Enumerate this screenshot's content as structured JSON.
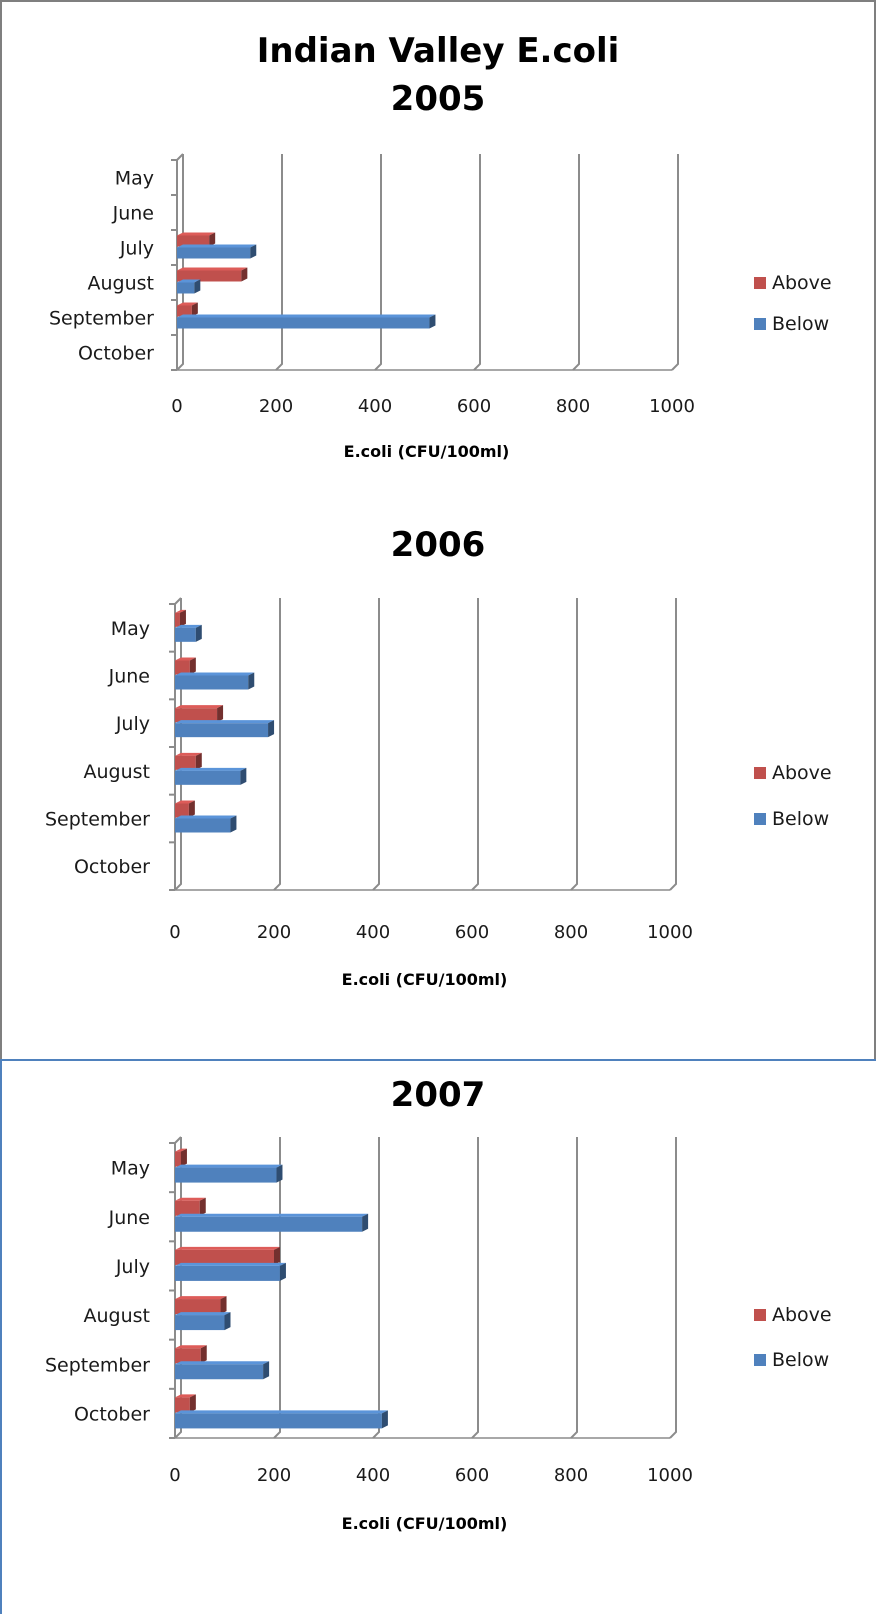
{
  "colors": {
    "above": "#c0504d",
    "below": "#4f81bd",
    "grid": "#8c8c8c",
    "border": "#7f7f7f",
    "border_accent": "#4f81bd"
  },
  "chart_data": [
    {
      "type": "bar",
      "orientation": "horizontal",
      "title": "Indian Valley E.coli",
      "subtitle": "2005",
      "categories": [
        "May",
        "June",
        "July",
        "August",
        "September",
        "October"
      ],
      "series": [
        {
          "name": "Above",
          "values": [
            0,
            0,
            65,
            130,
            30,
            0
          ]
        },
        {
          "name": "Below",
          "values": [
            0,
            0,
            148,
            35,
            510,
            0
          ]
        }
      ],
      "xlabel": "E.coli (CFU/100ml)",
      "xlim": [
        0,
        1000
      ],
      "xticks": [
        "0",
        "200",
        "400",
        "600",
        "800",
        "1000"
      ],
      "grid": true,
      "legend": "right"
    },
    {
      "type": "bar",
      "orientation": "horizontal",
      "title": "2006",
      "categories": [
        "May",
        "June",
        "July",
        "August",
        "September",
        "October"
      ],
      "series": [
        {
          "name": "Above",
          "values": [
            10,
            30,
            85,
            42,
            28,
            0
          ]
        },
        {
          "name": "Below",
          "values": [
            42,
            148,
            188,
            132,
            112,
            0
          ]
        }
      ],
      "xlabel": "E.coli (CFU/100ml)",
      "xlim": [
        0,
        1000
      ],
      "xticks": [
        "0",
        "200",
        "400",
        "600",
        "800",
        "1000"
      ],
      "grid": true,
      "legend": "right"
    },
    {
      "type": "bar",
      "orientation": "horizontal",
      "title": "2007",
      "categories": [
        "May",
        "June",
        "July",
        "August",
        "September",
        "October"
      ],
      "series": [
        {
          "name": "Above",
          "values": [
            12,
            50,
            200,
            92,
            52,
            30
          ]
        },
        {
          "name": "Below",
          "values": [
            205,
            378,
            212,
            100,
            178,
            418
          ]
        }
      ],
      "xlabel": "E.coli (CFU/100ml)",
      "xlim": [
        0,
        1000
      ],
      "xticks": [
        "0",
        "200",
        "400",
        "600",
        "800",
        "1000"
      ],
      "grid": true,
      "legend": "right"
    }
  ]
}
